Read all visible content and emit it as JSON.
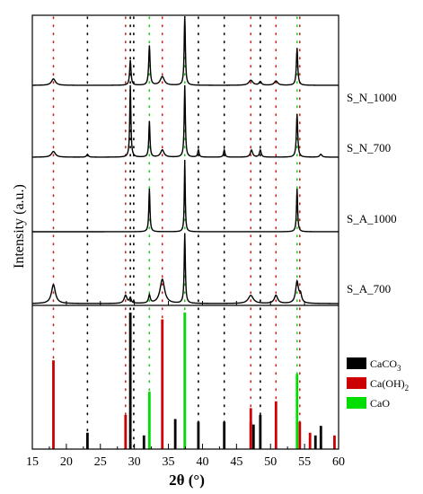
{
  "chart_data": {
    "type": "line",
    "xlabel": "2θ (°)",
    "ylabel": "Intensity (a.u.)",
    "xlim": [
      15,
      60
    ],
    "xticks": [
      15,
      20,
      25,
      30,
      35,
      40,
      45,
      50,
      55,
      60
    ],
    "grid": false,
    "series": [
      {
        "name": "S_N_1000",
        "baseline": 0.92,
        "peaks": [
          {
            "x": 18.1,
            "h": 0.09,
            "w": 0.35
          },
          {
            "x": 29.4,
            "h": 0.35,
            "w": 0.12
          },
          {
            "x": 32.2,
            "h": 0.55,
            "w": 0.12
          },
          {
            "x": 34.1,
            "h": 0.12,
            "w": 0.35
          },
          {
            "x": 37.4,
            "h": 1.0,
            "w": 0.1
          },
          {
            "x": 47.1,
            "h": 0.07,
            "w": 0.35
          },
          {
            "x": 48.5,
            "h": 0.05,
            "w": 0.2
          },
          {
            "x": 50.8,
            "h": 0.06,
            "w": 0.3
          },
          {
            "x": 53.9,
            "h": 0.52,
            "w": 0.12
          }
        ]
      },
      {
        "name": "S_N_700",
        "baseline": 0.92,
        "peaks": [
          {
            "x": 18.1,
            "h": 0.08,
            "w": 0.35
          },
          {
            "x": 23.1,
            "h": 0.04,
            "w": 0.15
          },
          {
            "x": 29.4,
            "h": 1.0,
            "w": 0.1
          },
          {
            "x": 32.2,
            "h": 0.5,
            "w": 0.1
          },
          {
            "x": 34.1,
            "h": 0.1,
            "w": 0.3
          },
          {
            "x": 37.4,
            "h": 1.0,
            "w": 0.1
          },
          {
            "x": 39.4,
            "h": 0.1,
            "w": 0.12
          },
          {
            "x": 43.2,
            "h": 0.1,
            "w": 0.12
          },
          {
            "x": 47.2,
            "h": 0.1,
            "w": 0.2
          },
          {
            "x": 48.5,
            "h": 0.1,
            "w": 0.15
          },
          {
            "x": 53.9,
            "h": 0.6,
            "w": 0.12
          },
          {
            "x": 57.4,
            "h": 0.04,
            "w": 0.2
          }
        ]
      },
      {
        "name": "S_A_1000",
        "baseline": 0.92,
        "peaks": [
          {
            "x": 32.2,
            "h": 0.6,
            "w": 0.1
          },
          {
            "x": 37.4,
            "h": 1.0,
            "w": 0.08
          },
          {
            "x": 53.9,
            "h": 0.6,
            "w": 0.1
          }
        ]
      },
      {
        "name": "S_A_700",
        "baseline": 0.92,
        "peaks": [
          {
            "x": 18.1,
            "h": 0.7,
            "w": 0.35
          },
          {
            "x": 28.7,
            "h": 0.3,
            "w": 0.25
          },
          {
            "x": 29.4,
            "h": 0.2,
            "w": 0.15
          },
          {
            "x": 32.2,
            "h": 0.3,
            "w": 0.15
          },
          {
            "x": 34.1,
            "h": 0.9,
            "w": 0.4
          },
          {
            "x": 37.4,
            "h": 2.6,
            "w": 0.1
          },
          {
            "x": 47.1,
            "h": 0.3,
            "w": 0.45
          },
          {
            "x": 50.8,
            "h": 0.3,
            "w": 0.3
          },
          {
            "x": 53.9,
            "h": 0.8,
            "w": 0.25
          },
          {
            "x": 54.4,
            "h": 0.3,
            "w": 0.2
          }
        ]
      }
    ],
    "reference_lines": {
      "CaCO3": {
        "color": "#000000",
        "positions": [
          23.1,
          29.4,
          31.4,
          36.0,
          39.4,
          43.2,
          47.1,
          47.5,
          48.5,
          56.6,
          57.4
        ],
        "heights": [
          0.12,
          1.0,
          0.1,
          0.22,
          0.2,
          0.2,
          0.2,
          0.18,
          0.25,
          0.1,
          0.17
        ]
      },
      "Ca(OH)2": {
        "color": "#cc0000",
        "positions": [
          18.1,
          28.7,
          34.1,
          47.1,
          50.8,
          54.3,
          55.8,
          59.4
        ],
        "heights": [
          0.65,
          0.25,
          0.95,
          0.3,
          0.35,
          0.2,
          0.12,
          0.1
        ]
      },
      "CaO": {
        "color": "#00dd00",
        "positions": [
          32.2,
          37.4,
          53.9
        ],
        "heights": [
          0.42,
          1.0,
          0.55
        ]
      }
    },
    "dotted_guides": {
      "black": [
        23.1,
        29.4,
        29.9,
        39.4,
        43.2,
        48.5
      ],
      "red": [
        18.1,
        28.7,
        34.1,
        47.1,
        50.8,
        54.3
      ],
      "green": [
        32.2,
        37.4,
        53.9
      ]
    },
    "legend": {
      "placement": "right",
      "entries": [
        {
          "label": "CaCO",
          "sub": "3",
          "color": "#000000"
        },
        {
          "label": "Ca(OH)",
          "sub": "2",
          "color": "#cc0000"
        },
        {
          "label": "CaO",
          "sub": "",
          "color": "#00dd00"
        }
      ]
    }
  }
}
